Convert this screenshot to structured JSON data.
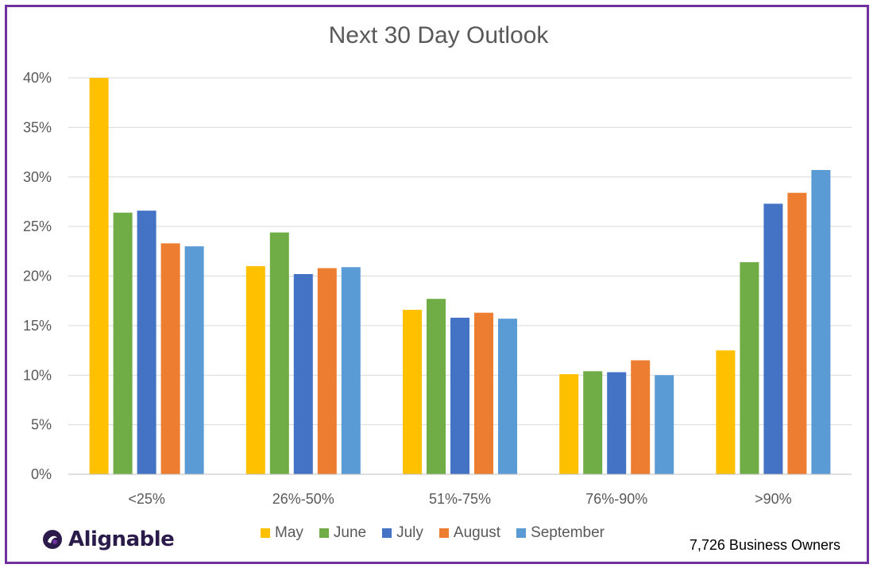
{
  "chart_data": {
    "type": "bar",
    "title": "Next 30 Day Outlook",
    "categories": [
      "<25%",
      "26%-50%",
      "51%-75%",
      "76%-90%",
      ">90%"
    ],
    "series": [
      {
        "name": "May",
        "color": "#ffc000",
        "values": [
          40.0,
          21.0,
          16.6,
          10.1,
          12.5
        ]
      },
      {
        "name": "June",
        "color": "#70ad47",
        "values": [
          26.4,
          24.4,
          17.7,
          10.4,
          21.4
        ]
      },
      {
        "name": "July",
        "color": "#4472c4",
        "values": [
          26.6,
          20.2,
          15.8,
          10.3,
          27.3
        ]
      },
      {
        "name": "August",
        "color": "#ed7d31",
        "values": [
          23.3,
          20.8,
          16.3,
          11.5,
          28.4
        ]
      },
      {
        "name": "September",
        "color": "#5b9bd5",
        "values": [
          23.0,
          20.9,
          15.7,
          10.0,
          30.7
        ]
      }
    ],
    "y_ticks": [
      "0%",
      "5%",
      "10%",
      "15%",
      "20%",
      "25%",
      "30%",
      "35%",
      "40%"
    ],
    "ylim": [
      0,
      40
    ],
    "grid": true,
    "legend_position": "bottom"
  },
  "footer": {
    "note": "7,726 Business Owners",
    "logo_text": "Alignable"
  },
  "colors": {
    "frame": "#7030a0",
    "grid": "#d9d9d9",
    "text": "#595959"
  }
}
